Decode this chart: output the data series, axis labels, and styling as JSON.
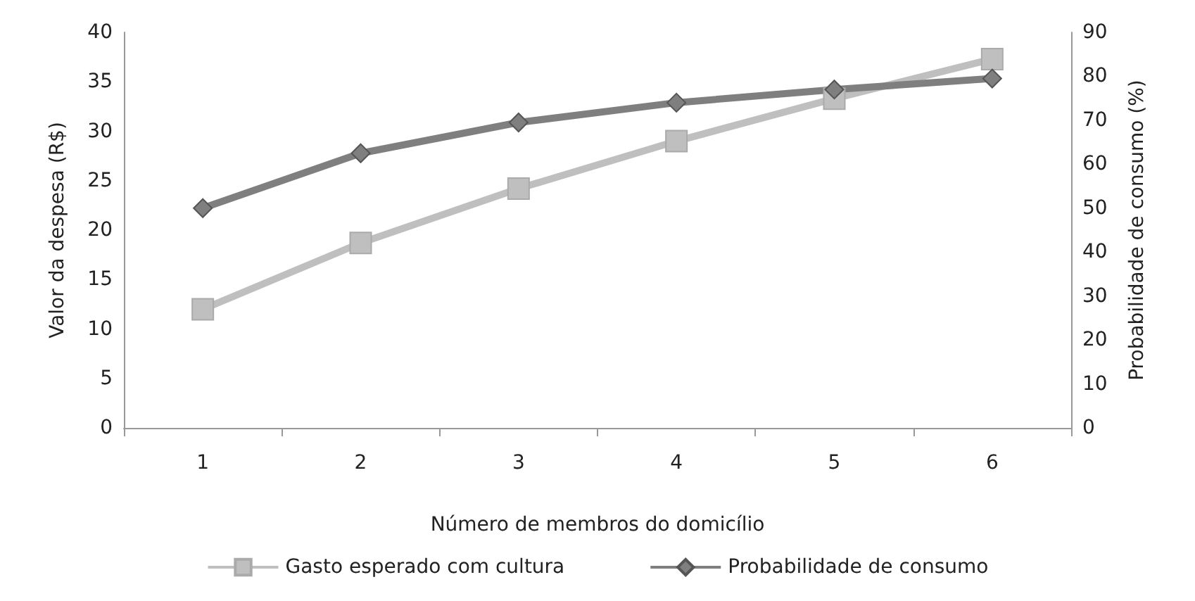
{
  "chart_data": {
    "type": "line",
    "xlabel": "Número de membros do domicílio",
    "ylabel": "Valor da despesa (R$)",
    "y2label": "Probabilidade de consumo (%)",
    "categories": [
      "1",
      "2",
      "3",
      "4",
      "5",
      "6"
    ],
    "series": [
      {
        "name": "Gasto esperado com cultura",
        "color": "#bfbfbf",
        "marker": "square",
        "values": [
          12,
          18.7,
          24.2,
          29,
          33.3,
          37.3
        ]
      },
      {
        "name": "Probabilidade de consumo",
        "color": "#7f7f7f",
        "marker": "diamond",
        "axis": "y2",
        "values": [
          50,
          62.5,
          69.5,
          74,
          77,
          79.5
        ]
      }
    ],
    "ylim": [
      0,
      40
    ],
    "yticks": [
      0,
      5,
      10,
      15,
      20,
      25,
      30,
      35,
      40
    ],
    "y2lim": [
      0,
      90
    ],
    "y2ticks": [
      0,
      10,
      20,
      30,
      40,
      50,
      60,
      70,
      80,
      90
    ],
    "grid": false,
    "legend": "bottom"
  }
}
